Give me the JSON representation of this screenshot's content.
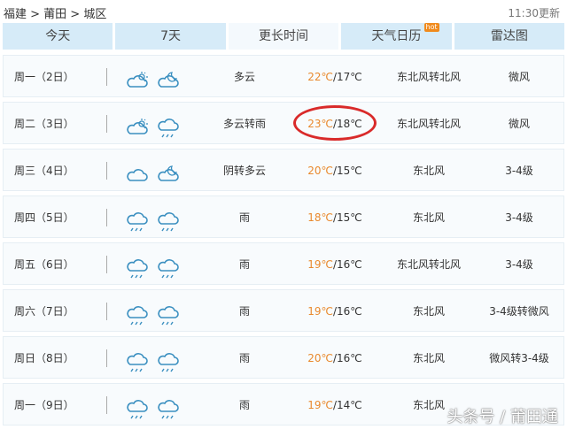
{
  "breadcrumb": "福建 > 莆田 > 城区",
  "updated": "11:30更新",
  "tabs": [
    {
      "label": "今天"
    },
    {
      "label": "7天"
    },
    {
      "label": "更长时间"
    },
    {
      "label": "天气日历",
      "badge": "hot"
    },
    {
      "label": "雷达图"
    }
  ],
  "rows": [
    {
      "date": "周一（2日）",
      "icons": [
        "partly-cloudy-icon",
        "cloudy-night-icon"
      ],
      "desc": "多云",
      "high": "22℃",
      "low": "/17℃",
      "wind": "东北风转北风",
      "level": "微风"
    },
    {
      "date": "周二（3日）",
      "icons": [
        "partly-cloudy-icon",
        "rain-icon"
      ],
      "desc": "多云转雨",
      "high": "23℃",
      "low": "/18℃",
      "wind": "东北风转北风",
      "level": "微风"
    },
    {
      "date": "周三（4日）",
      "icons": [
        "cloud-icon",
        "cloudy-night-icon"
      ],
      "desc": "阴转多云",
      "high": "20℃",
      "low": "/15℃",
      "wind": "东北风",
      "level": "3-4级"
    },
    {
      "date": "周四（5日）",
      "icons": [
        "rain-icon",
        "rain-icon"
      ],
      "desc": "雨",
      "high": "18℃",
      "low": "/15℃",
      "wind": "东北风",
      "level": "3-4级"
    },
    {
      "date": "周五（6日）",
      "icons": [
        "rain-icon",
        "rain-icon"
      ],
      "desc": "雨",
      "high": "19℃",
      "low": "/16℃",
      "wind": "东北风转北风",
      "level": "3-4级"
    },
    {
      "date": "周六（7日）",
      "icons": [
        "rain-icon",
        "rain-icon"
      ],
      "desc": "雨",
      "high": "19℃",
      "low": "/16℃",
      "wind": "东北风",
      "level": "3-4级转微风"
    },
    {
      "date": "周日（8日）",
      "icons": [
        "rain-icon",
        "rain-icon"
      ],
      "desc": "雨",
      "high": "20℃",
      "low": "/16℃",
      "wind": "东北风",
      "level": "微风转3-4级"
    },
    {
      "date": "周一（9日）",
      "icons": [
        "rain-icon",
        "rain-icon"
      ],
      "desc": "雨",
      "high": "19℃",
      "low": "/14℃",
      "wind": "东北风",
      "level": ""
    }
  ],
  "watermark": "头条号 / 莆田通",
  "colors": {
    "tab_bg": "#d6ebf8",
    "high_temp": "#e98a2f",
    "highlight_circle": "#d92a2a"
  }
}
